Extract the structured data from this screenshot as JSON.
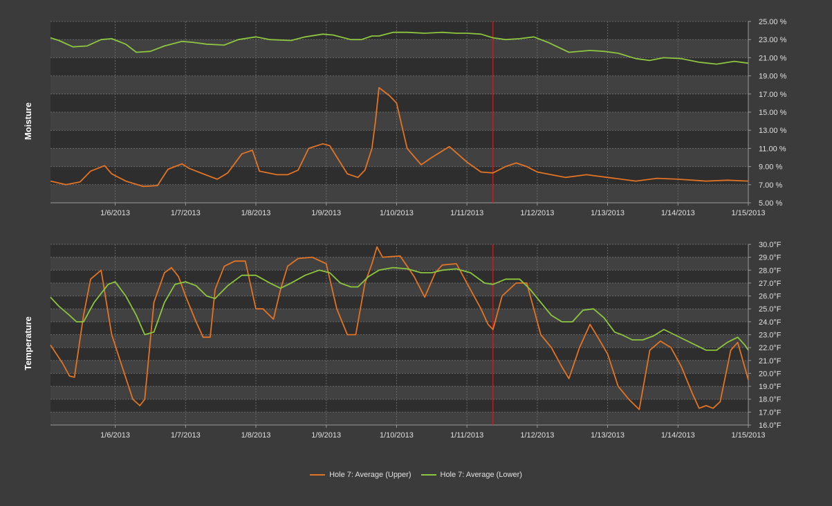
{
  "chart_data": [
    {
      "type": "line",
      "ylabel": "Moisture",
      "ylim": [
        5,
        25
      ],
      "y_ticks": [
        "25.00 %",
        "23.00 %",
        "21.00 %",
        "19.00 %",
        "17.00 %",
        "15.00 %",
        "13.00 %",
        "11.00 %",
        "9.00 %",
        "7.00 %",
        "5.00 %"
      ],
      "x_ticks": [
        "1/6/2013",
        "1/7/2013",
        "1/8/2013",
        "1/9/2013",
        "1/10/2013",
        "1/11/2013",
        "1/12/2013",
        "1/13/2013",
        "1/14/2013",
        "1/15/2013"
      ],
      "xlim": [
        5.08,
        15.0
      ],
      "marker_x": 11.37,
      "grid": true,
      "series": [
        {
          "name": "Hole 7: Average (Upper)",
          "color": "#e27424",
          "x": [
            5.08,
            5.3,
            5.5,
            5.65,
            5.85,
            5.95,
            6.15,
            6.4,
            6.6,
            6.75,
            6.95,
            7.05,
            7.25,
            7.45,
            7.6,
            7.8,
            7.95,
            8.05,
            8.3,
            8.45,
            8.6,
            8.75,
            8.95,
            9.05,
            9.3,
            9.45,
            9.55,
            9.65,
            9.7,
            9.75,
            9.9,
            10.0,
            10.15,
            10.35,
            10.5,
            10.75,
            11.0,
            11.2,
            11.37,
            11.55,
            11.7,
            11.85,
            12.0,
            12.4,
            12.7,
            13.0,
            13.4,
            13.7,
            14.0,
            14.4,
            14.7,
            15.0
          ],
          "values": [
            7.4,
            7.0,
            7.3,
            8.5,
            9.1,
            8.2,
            7.4,
            6.8,
            6.9,
            8.7,
            9.3,
            8.8,
            8.2,
            7.6,
            8.3,
            10.4,
            10.8,
            8.5,
            8.1,
            8.1,
            8.6,
            11.0,
            11.5,
            11.3,
            8.2,
            7.8,
            8.6,
            11.0,
            14.0,
            17.7,
            16.8,
            16.0,
            11.0,
            9.2,
            10.0,
            11.2,
            9.5,
            8.4,
            8.3,
            9.0,
            9.4,
            9.0,
            8.4,
            7.8,
            8.1,
            7.8,
            7.4,
            7.7,
            7.6,
            7.4,
            7.5,
            7.4
          ]
        },
        {
          "name": "Hole 7: Average (Lower)",
          "color": "#8dc63f",
          "x": [
            5.08,
            5.2,
            5.4,
            5.6,
            5.8,
            5.95,
            6.15,
            6.3,
            6.5,
            6.7,
            6.95,
            7.1,
            7.3,
            7.55,
            7.75,
            8.0,
            8.2,
            8.5,
            8.7,
            8.95,
            9.1,
            9.35,
            9.5,
            9.65,
            9.75,
            9.95,
            10.15,
            10.4,
            10.65,
            10.85,
            11.0,
            11.2,
            11.37,
            11.55,
            11.75,
            11.95,
            12.15,
            12.45,
            12.75,
            12.95,
            13.15,
            13.4,
            13.6,
            13.8,
            14.05,
            14.3,
            14.55,
            14.8,
            15.0
          ],
          "values": [
            23.2,
            22.9,
            22.2,
            22.3,
            23.0,
            23.1,
            22.5,
            21.6,
            21.7,
            22.3,
            22.8,
            22.7,
            22.5,
            22.4,
            23.0,
            23.3,
            23.0,
            22.9,
            23.3,
            23.6,
            23.5,
            23.0,
            23.0,
            23.4,
            23.4,
            23.8,
            23.8,
            23.7,
            23.8,
            23.7,
            23.7,
            23.6,
            23.2,
            23.0,
            23.1,
            23.3,
            22.7,
            21.6,
            21.8,
            21.7,
            21.5,
            20.9,
            20.7,
            21.0,
            20.9,
            20.5,
            20.3,
            20.6,
            20.4
          ]
        }
      ]
    },
    {
      "type": "line",
      "ylabel": "Temperature",
      "ylim": [
        16,
        30
      ],
      "y_ticks": [
        "30.0°F",
        "29.0°F",
        "28.0°F",
        "27.0°F",
        "26.0°F",
        "25.0°F",
        "24.0°F",
        "23.0°F",
        "22.0°F",
        "21.0°F",
        "20.0°F",
        "19.0°F",
        "18.0°F",
        "17.0°F",
        "16.0°F"
      ],
      "x_ticks": [
        "1/6/2013",
        "1/7/2013",
        "1/8/2013",
        "1/9/2013",
        "1/10/2013",
        "1/11/2013",
        "1/12/2013",
        "1/13/2013",
        "1/14/2013",
        "1/15/2013"
      ],
      "xlim": [
        5.08,
        15.0
      ],
      "marker_x": 11.37,
      "grid": true,
      "series": [
        {
          "name": "Hole 7: Average (Upper)",
          "color": "#e27424",
          "x": [
            5.08,
            5.25,
            5.35,
            5.42,
            5.55,
            5.65,
            5.8,
            5.95,
            6.1,
            6.25,
            6.35,
            6.42,
            6.55,
            6.7,
            6.8,
            6.9,
            7.0,
            7.15,
            7.25,
            7.35,
            7.42,
            7.55,
            7.7,
            7.85,
            8.0,
            8.1,
            8.25,
            8.35,
            8.45,
            8.6,
            8.8,
            9.0,
            9.15,
            9.3,
            9.42,
            9.55,
            9.65,
            9.72,
            9.8,
            10.05,
            10.25,
            10.4,
            10.55,
            10.65,
            10.85,
            11.05,
            11.2,
            11.3,
            11.37,
            11.5,
            11.7,
            11.85,
            11.95,
            12.05,
            12.2,
            12.35,
            12.45,
            12.6,
            12.75,
            12.85,
            13.0,
            13.15,
            13.3,
            13.45,
            13.6,
            13.75,
            13.9,
            14.05,
            14.2,
            14.3,
            14.4,
            14.5,
            14.6,
            14.75,
            14.85,
            15.0
          ],
          "values": [
            22.2,
            20.8,
            19.8,
            19.7,
            24.5,
            27.3,
            28.0,
            23.0,
            20.5,
            18.0,
            17.5,
            18.0,
            25.5,
            27.8,
            28.2,
            27.5,
            26.0,
            24.0,
            22.8,
            22.8,
            26.5,
            28.3,
            28.7,
            28.7,
            25.0,
            25.0,
            24.2,
            26.5,
            28.3,
            28.9,
            29.0,
            28.5,
            25.0,
            23.0,
            23.0,
            27.0,
            28.5,
            29.8,
            29.0,
            29.1,
            27.5,
            25.9,
            27.8,
            28.4,
            28.5,
            26.5,
            25.0,
            23.8,
            23.4,
            26.0,
            27.0,
            27.0,
            25.0,
            23.0,
            22.0,
            20.5,
            19.6,
            22.0,
            23.8,
            22.9,
            21.5,
            19.0,
            18.0,
            17.2,
            21.8,
            22.5,
            22.0,
            20.5,
            18.5,
            17.3,
            17.5,
            17.3,
            17.8,
            21.8,
            22.4,
            19.5
          ]
        },
        {
          "name": "Hole 7: Average (Lower)",
          "color": "#8dc63f",
          "x": [
            5.08,
            5.2,
            5.35,
            5.45,
            5.55,
            5.7,
            5.9,
            6.0,
            6.15,
            6.3,
            6.42,
            6.55,
            6.7,
            6.85,
            7.0,
            7.15,
            7.3,
            7.42,
            7.6,
            7.8,
            8.0,
            8.2,
            8.35,
            8.5,
            8.7,
            8.9,
            9.05,
            9.2,
            9.35,
            9.45,
            9.6,
            9.75,
            9.95,
            10.15,
            10.35,
            10.5,
            10.65,
            10.85,
            11.05,
            11.25,
            11.37,
            11.55,
            11.75,
            11.9,
            12.05,
            12.2,
            12.35,
            12.5,
            12.65,
            12.8,
            12.95,
            13.1,
            13.2,
            13.35,
            13.5,
            13.65,
            13.8,
            13.95,
            14.1,
            14.25,
            14.4,
            14.55,
            14.7,
            14.85,
            14.95,
            15.0
          ],
          "values": [
            25.9,
            25.2,
            24.5,
            24.0,
            24.0,
            25.5,
            26.9,
            27.1,
            26.0,
            24.5,
            23.0,
            23.2,
            25.5,
            26.9,
            27.1,
            26.8,
            26.0,
            25.8,
            26.8,
            27.6,
            27.6,
            27.0,
            26.6,
            27.0,
            27.6,
            28.0,
            27.8,
            27.0,
            26.7,
            26.7,
            27.5,
            28.0,
            28.2,
            28.1,
            27.8,
            27.8,
            28.0,
            28.1,
            27.8,
            27.0,
            26.9,
            27.3,
            27.3,
            26.5,
            25.5,
            24.5,
            24.0,
            24.0,
            24.9,
            25.0,
            24.3,
            23.2,
            23.0,
            22.6,
            22.6,
            22.9,
            23.4,
            23.0,
            22.6,
            22.2,
            21.8,
            21.8,
            22.4,
            22.8,
            22.2,
            21.8
          ]
        }
      ]
    }
  ],
  "legend": {
    "items": [
      {
        "label": "Hole 7: Average (Upper)",
        "color": "#e27424"
      },
      {
        "label": "Hole 7: Average (Lower)",
        "color": "#8dc63f"
      }
    ]
  }
}
